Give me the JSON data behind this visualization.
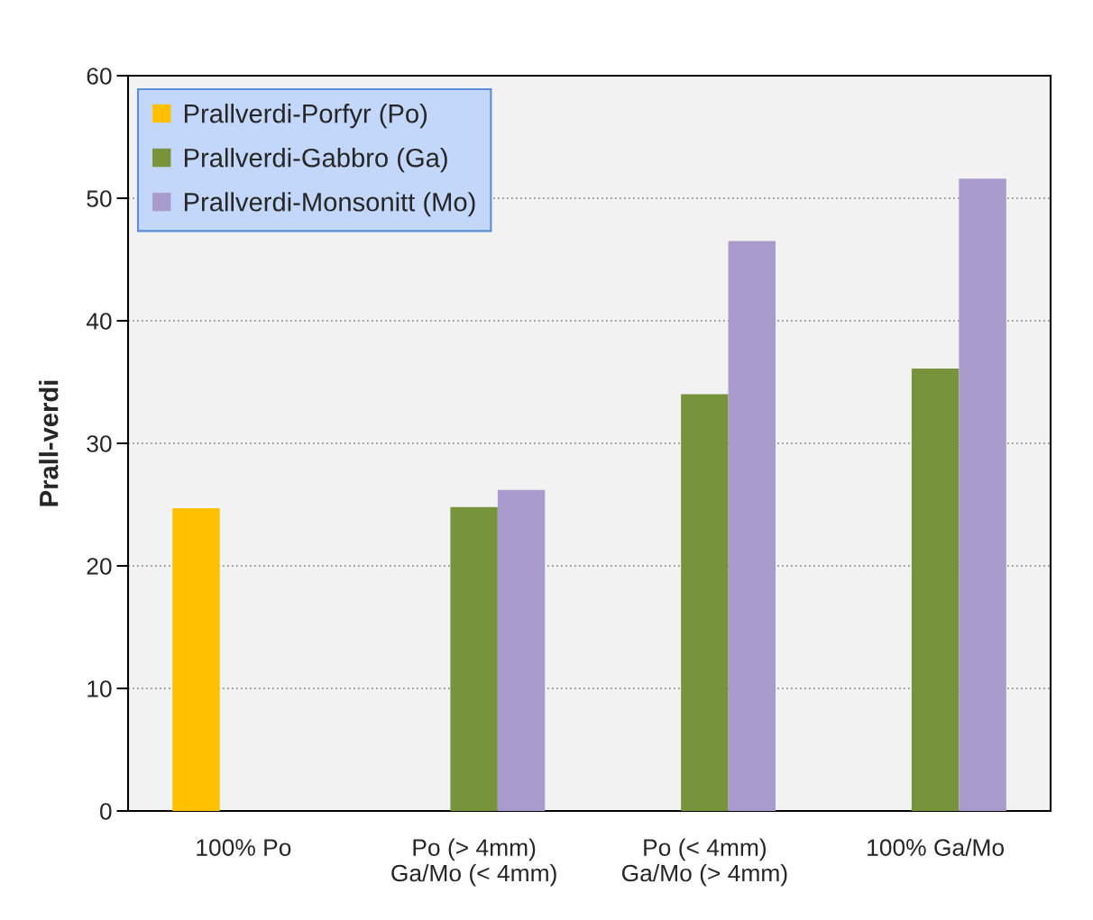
{
  "chart_data": {
    "type": "bar",
    "ylabel": "Prall-verdi",
    "categories": [
      "100% Po",
      "Po (> 4mm)\nGa/Mo (< 4mm)",
      "Po (< 4mm)\nGa/Mo (> 4mm)",
      "100% Ga/Mo"
    ],
    "series": [
      {
        "name": "Prallverdi-Porfyr (Po)",
        "color": "#ffc000",
        "values": [
          24.7,
          null,
          null,
          null
        ]
      },
      {
        "name": "Prallverdi-Gabbro (Ga)",
        "color": "#77933c",
        "values": [
          null,
          24.8,
          34.0,
          36.1
        ]
      },
      {
        "name": "Prallverdi-Monsonitt (Mo)",
        "color": "#a99ccd",
        "values": [
          null,
          26.2,
          46.5,
          51.6
        ]
      }
    ],
    "ylim": [
      0,
      60
    ],
    "yticks": [
      0,
      10,
      20,
      30,
      40,
      50,
      60
    ],
    "grid": "y",
    "legend": "top left"
  }
}
